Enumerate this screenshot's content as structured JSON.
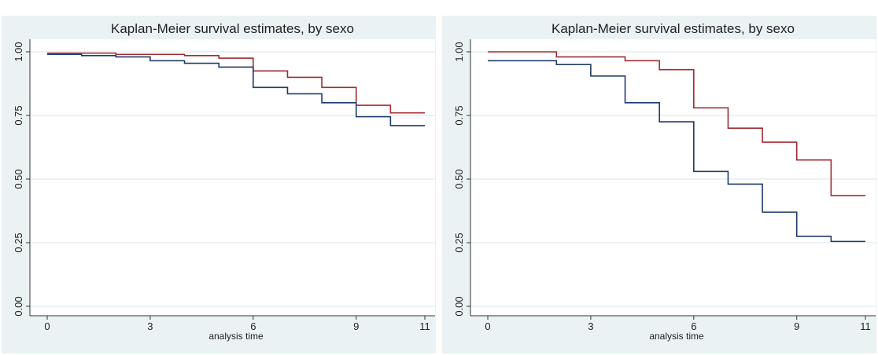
{
  "chart_data": [
    {
      "type": "line",
      "step": "post",
      "title": "Kaplan-Meier survival estimates, by sexo",
      "xlabel": "analysis time",
      "x": [
        0,
        1,
        2,
        3,
        4,
        5,
        6,
        7,
        8,
        9,
        10,
        11
      ],
      "series": [
        {
          "color": "#a02c32",
          "values": [
            0.995,
            0.995,
            0.99,
            0.99,
            0.985,
            0.975,
            0.925,
            0.9,
            0.86,
            0.79,
            0.76,
            0.76
          ]
        },
        {
          "color": "#1f3a6b",
          "values": [
            0.99,
            0.985,
            0.98,
            0.965,
            0.955,
            0.94,
            0.86,
            0.835,
            0.8,
            0.745,
            0.71,
            0.71
          ]
        }
      ],
      "xlim": [
        0,
        11
      ],
      "xticks": [
        0,
        3,
        6,
        9,
        11
      ],
      "ylim": [
        0,
        1
      ],
      "yticks": [
        {
          "value": 0,
          "label": "0.00"
        },
        {
          "value": 0.25,
          "label": "0.25"
        },
        {
          "value": 0.5,
          "label": "0.50"
        },
        {
          "value": 0.75,
          "label": "0.75"
        },
        {
          "value": 1,
          "label": "1.00"
        }
      ],
      "grid": true
    },
    {
      "type": "line",
      "step": "post",
      "title": "Kaplan-Meier survival estimates, by sexo",
      "xlabel": "analysis time",
      "x": [
        0,
        2,
        3,
        4,
        5,
        6,
        7,
        8,
        9,
        10,
        11
      ],
      "series": [
        {
          "color": "#a02c32",
          "values": [
            1.0,
            0.98,
            0.98,
            0.965,
            0.93,
            0.78,
            0.7,
            0.645,
            0.575,
            0.435,
            0.435
          ]
        },
        {
          "color": "#1f3a6b",
          "values": [
            0.965,
            0.95,
            0.905,
            0.8,
            0.725,
            0.53,
            0.48,
            0.37,
            0.275,
            0.255,
            0.255
          ]
        }
      ],
      "xlim": [
        0,
        11
      ],
      "xticks": [
        0,
        3,
        6,
        9,
        11
      ],
      "ylim": [
        0,
        1
      ],
      "yticks": [
        {
          "value": 0,
          "label": "0.00"
        },
        {
          "value": 0.25,
          "label": "0.25"
        },
        {
          "value": 0.5,
          "label": "0.50"
        },
        {
          "value": 0.75,
          "label": "0.75"
        },
        {
          "value": 1,
          "label": "1.00"
        }
      ],
      "grid": true
    }
  ]
}
